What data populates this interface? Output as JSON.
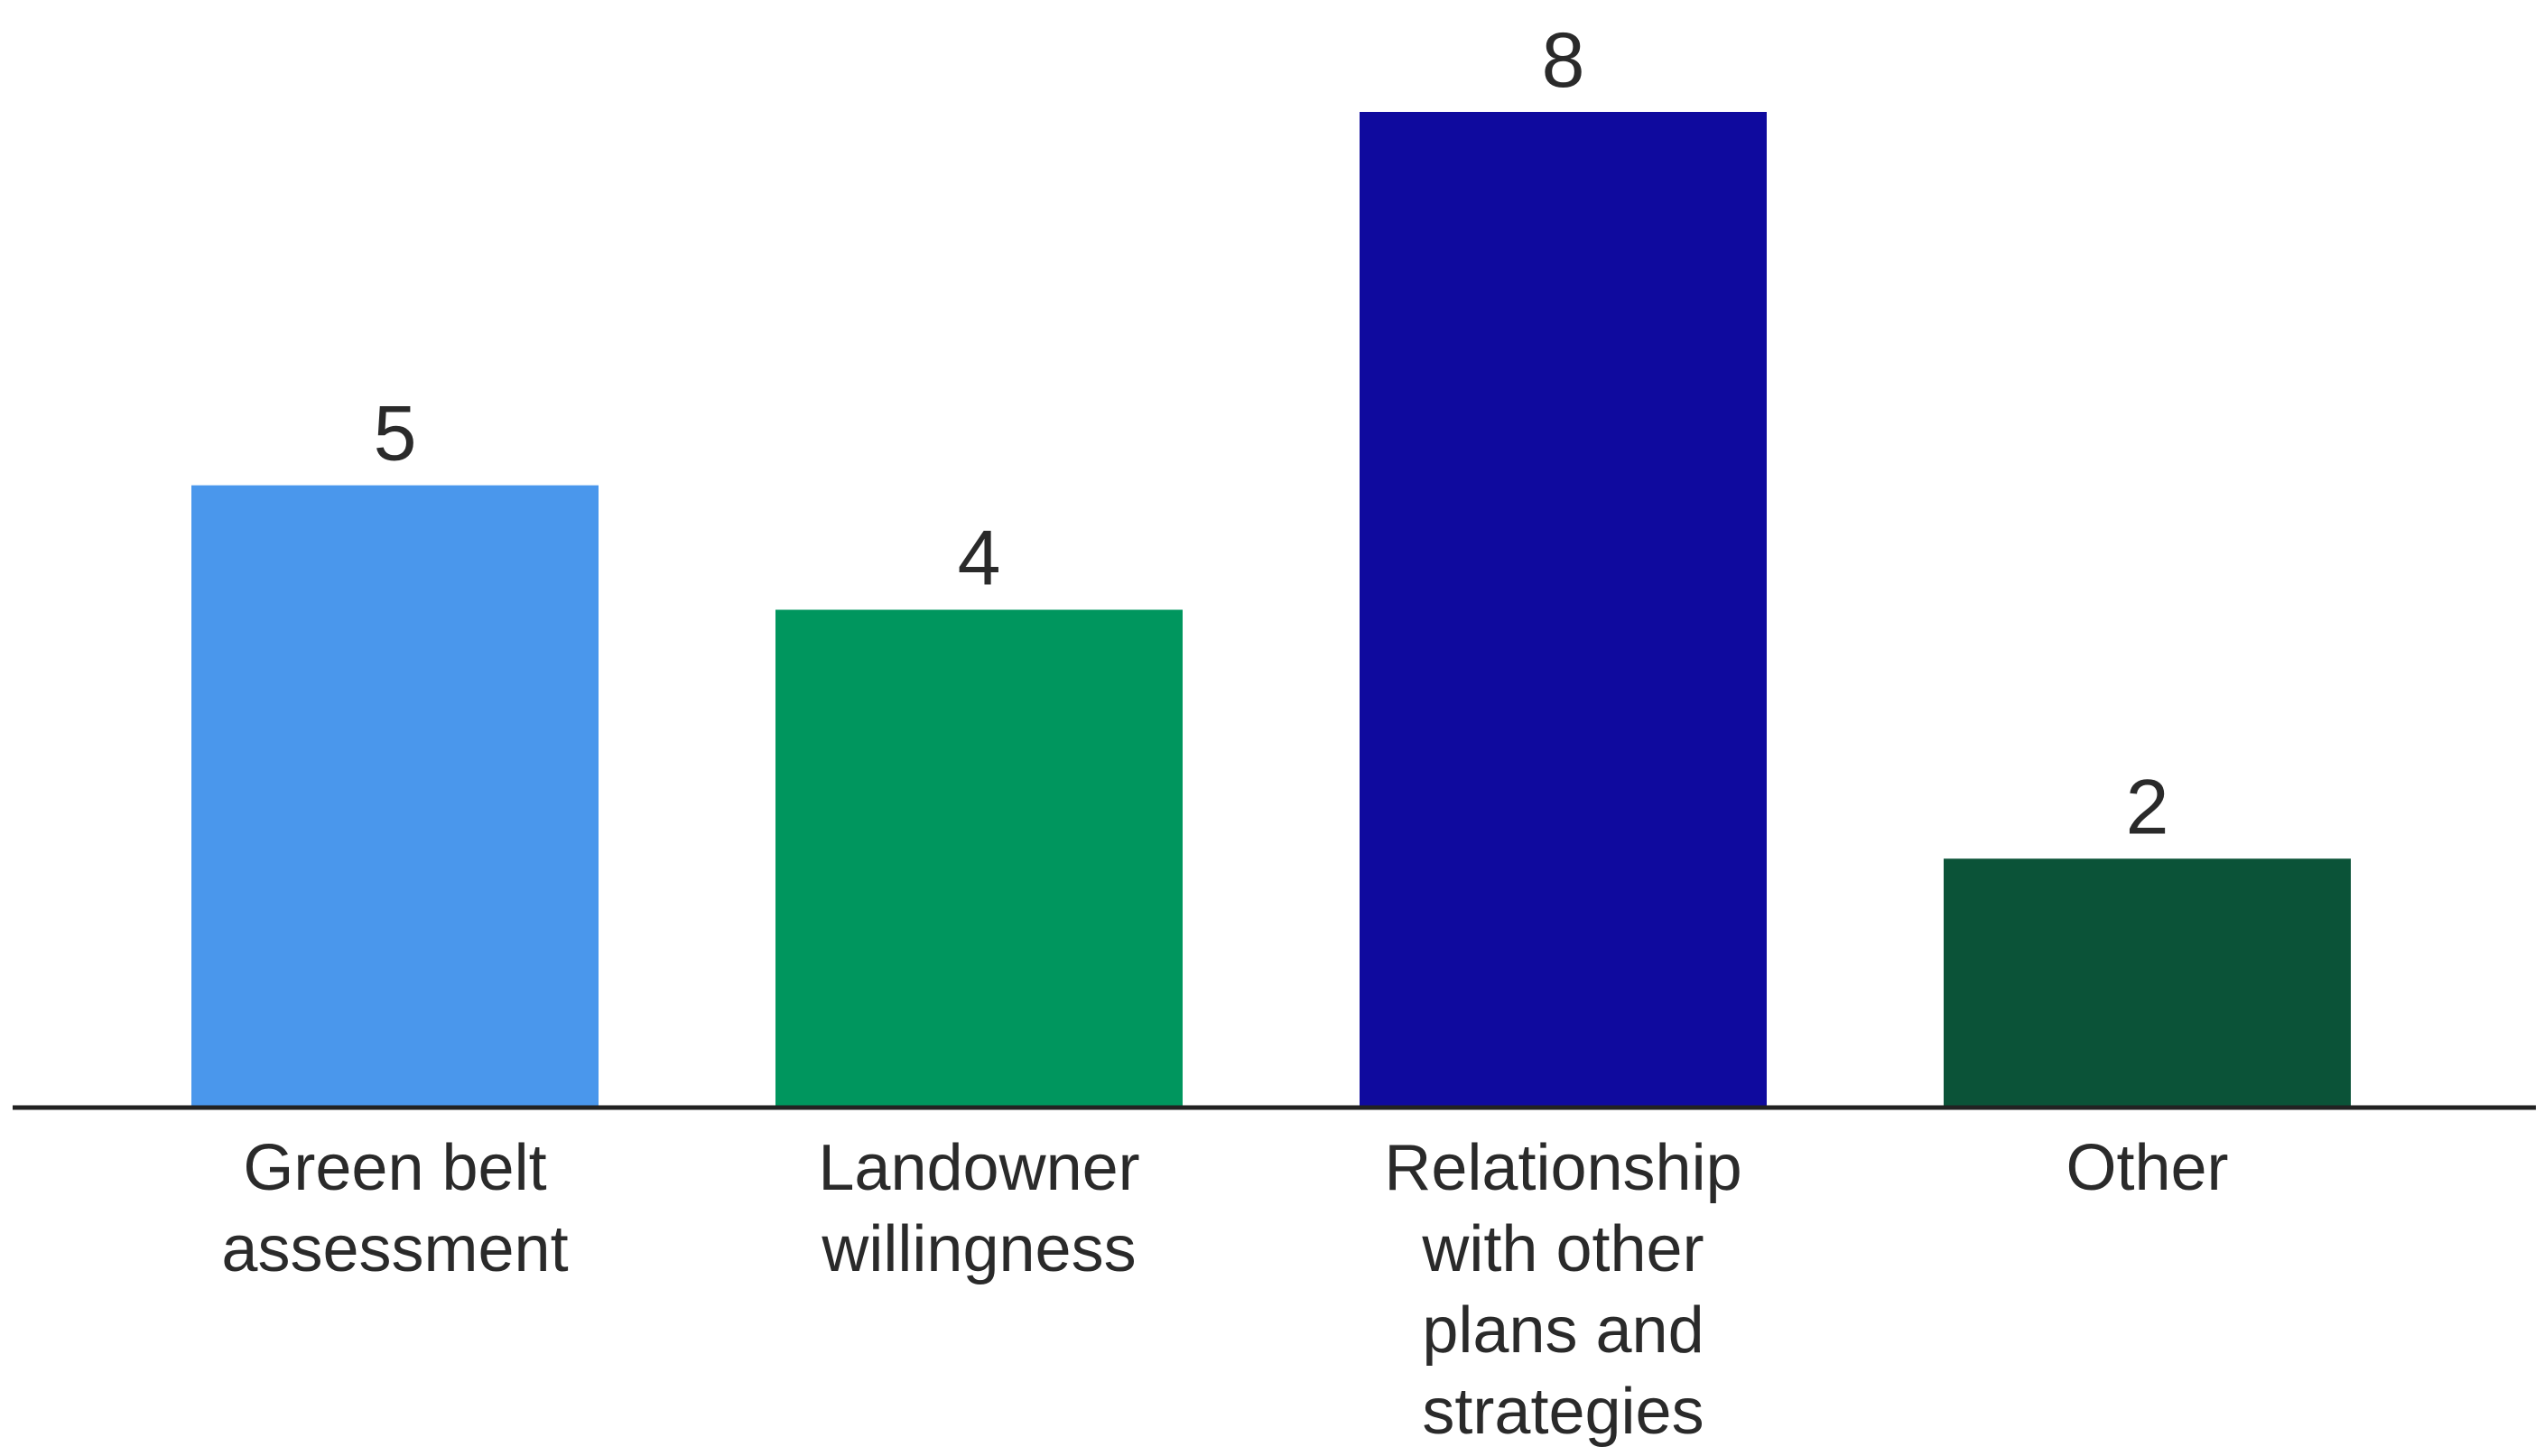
{
  "chart_data": {
    "type": "bar",
    "categories": [
      "Green belt assessment",
      "Landowner willingness",
      "Relationship with other plans and strategies",
      "Other"
    ],
    "values": [
      5,
      4,
      8,
      2
    ],
    "colors": [
      "#4a97ec",
      "#00965e",
      "#0f0a9e",
      "#0b5338"
    ],
    "ylim": [
      0,
      8
    ]
  }
}
